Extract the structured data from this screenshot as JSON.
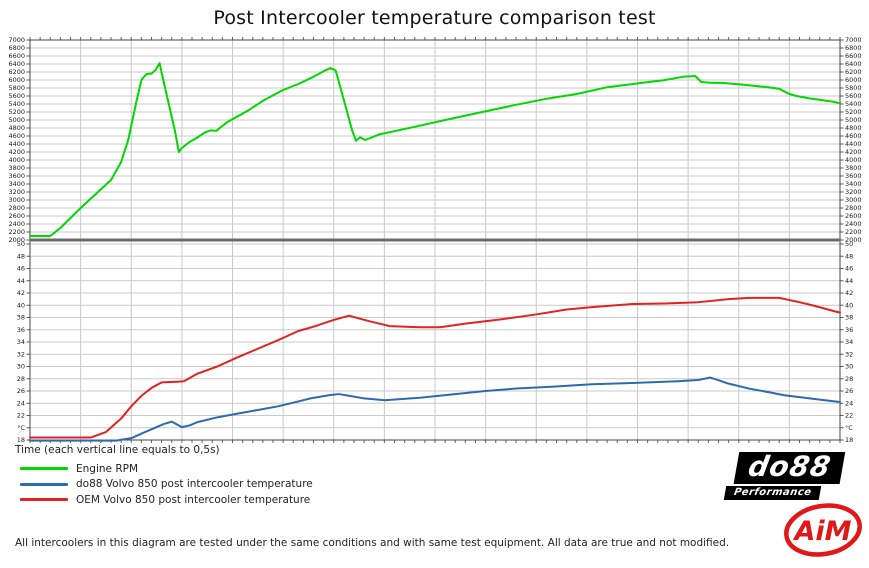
{
  "title": "Post Intercooler temperature comparison test",
  "time_axis_label": "Time (each vertical line equals to 0,5s)",
  "footer": "All intercoolers in this diagram are tested under the same conditions and with same test equipment. All data are true and not modified.",
  "legend": [
    {
      "label": "Engine RPM",
      "color": "#00d800"
    },
    {
      "label": "do88 Volvo 850 post intercooler temperature",
      "color": "#2e6ab0"
    },
    {
      "label": "OEM Volvo 850 post intercooler temperature",
      "color": "#e12323"
    }
  ],
  "logos": {
    "do88_text": "do88",
    "do88_sub": "Performance",
    "aim_text": "AiM"
  },
  "colors": {
    "grid": "#c9c9c9",
    "border": "#444444",
    "divider": "#6b6b6b",
    "axis_text": "#1a1a1a"
  },
  "chart_data": {
    "type": "line",
    "title": "Post Intercooler temperature comparison test",
    "xlabel": "Time (each vertical line equals to 0,5s)",
    "gridline_interval_seconds": 0.5,
    "x_range_seconds": [
      0,
      8
    ],
    "panels": [
      {
        "name": "rpm",
        "ylim": [
          2000,
          7000
        ],
        "tick_step": 200,
        "unit": "RPM"
      },
      {
        "name": "temperature",
        "ylim": [
          18,
          50.7
        ],
        "tick_top": 50,
        "tick_step": 2,
        "unit": "°C",
        "unit_label_replaces_tick": 20
      }
    ],
    "series": [
      {
        "name": "Engine RPM",
        "panel": "rpm",
        "color": "#00d800",
        "points": [
          [
            0,
            2100
          ],
          [
            0.2,
            2100
          ],
          [
            0.3,
            2300
          ],
          [
            0.5,
            2800
          ],
          [
            0.65,
            3150
          ],
          [
            0.8,
            3500
          ],
          [
            0.9,
            3950
          ],
          [
            0.97,
            4500
          ],
          [
            1.05,
            5450
          ],
          [
            1.1,
            6000
          ],
          [
            1.15,
            6150
          ],
          [
            1.2,
            6160
          ],
          [
            1.24,
            6250
          ],
          [
            1.28,
            6420
          ],
          [
            1.33,
            5850
          ],
          [
            1.38,
            5300
          ],
          [
            1.43,
            4750
          ],
          [
            1.47,
            4200
          ],
          [
            1.5,
            4300
          ],
          [
            1.57,
            4440
          ],
          [
            1.65,
            4560
          ],
          [
            1.73,
            4690
          ],
          [
            1.78,
            4740
          ],
          [
            1.84,
            4730
          ],
          [
            1.95,
            4950
          ],
          [
            2.15,
            5230
          ],
          [
            2.3,
            5480
          ],
          [
            2.5,
            5750
          ],
          [
            2.65,
            5900
          ],
          [
            2.8,
            6080
          ],
          [
            2.9,
            6220
          ],
          [
            2.97,
            6300
          ],
          [
            3.02,
            6230
          ],
          [
            3.1,
            5500
          ],
          [
            3.18,
            4750
          ],
          [
            3.22,
            4480
          ],
          [
            3.26,
            4570
          ],
          [
            3.31,
            4500
          ],
          [
            3.45,
            4640
          ],
          [
            3.6,
            4720
          ],
          [
            3.8,
            4830
          ],
          [
            4.1,
            5000
          ],
          [
            4.45,
            5190
          ],
          [
            4.8,
            5380
          ],
          [
            5.1,
            5530
          ],
          [
            5.4,
            5650
          ],
          [
            5.7,
            5820
          ],
          [
            6.05,
            5930
          ],
          [
            6.25,
            5990
          ],
          [
            6.45,
            6080
          ],
          [
            6.57,
            6100
          ],
          [
            6.63,
            5950
          ],
          [
            6.72,
            5930
          ],
          [
            6.85,
            5925
          ],
          [
            7.05,
            5880
          ],
          [
            7.25,
            5830
          ],
          [
            7.4,
            5780
          ],
          [
            7.5,
            5650
          ],
          [
            7.57,
            5600
          ],
          [
            7.7,
            5540
          ],
          [
            7.9,
            5470
          ],
          [
            8,
            5420
          ]
        ]
      },
      {
        "name": "do88 Volvo 850 post intercooler temperature",
        "panel": "temperature",
        "color": "#2e6ab0",
        "points": [
          [
            0,
            17.9
          ],
          [
            0.85,
            17.9
          ],
          [
            1,
            18.3
          ],
          [
            1.15,
            19.4
          ],
          [
            1.32,
            20.6
          ],
          [
            1.4,
            21
          ],
          [
            1.5,
            20.1
          ],
          [
            1.58,
            20.4
          ],
          [
            1.65,
            20.9
          ],
          [
            1.85,
            21.7
          ],
          [
            2.05,
            22.3
          ],
          [
            2.25,
            22.9
          ],
          [
            2.45,
            23.5
          ],
          [
            2.65,
            24.3
          ],
          [
            2.77,
            24.8
          ],
          [
            2.95,
            25.3
          ],
          [
            3.05,
            25.5
          ],
          [
            3.3,
            24.8
          ],
          [
            3.5,
            24.5
          ],
          [
            3.85,
            24.9
          ],
          [
            4.15,
            25.4
          ],
          [
            4.5,
            26
          ],
          [
            4.8,
            26.4
          ],
          [
            5.15,
            26.7
          ],
          [
            5.55,
            27.1
          ],
          [
            5.95,
            27.3
          ],
          [
            6.4,
            27.6
          ],
          [
            6.6,
            27.8
          ],
          [
            6.72,
            28.2
          ],
          [
            6.9,
            27.2
          ],
          [
            7.1,
            26.4
          ],
          [
            7.3,
            25.8
          ],
          [
            7.45,
            25.3
          ],
          [
            7.6,
            25
          ],
          [
            7.8,
            24.6
          ],
          [
            8,
            24.2
          ]
        ]
      },
      {
        "name": "OEM Volvo 850 post intercooler temperature",
        "panel": "temperature",
        "color": "#e12323",
        "points": [
          [
            0,
            18.4
          ],
          [
            0.6,
            18.4
          ],
          [
            0.75,
            19.3
          ],
          [
            0.9,
            21.5
          ],
          [
            1,
            23.5
          ],
          [
            1.1,
            25.2
          ],
          [
            1.2,
            26.5
          ],
          [
            1.3,
            27.4
          ],
          [
            1.45,
            27.5
          ],
          [
            1.52,
            27.6
          ],
          [
            1.65,
            28.8
          ],
          [
            1.85,
            30
          ],
          [
            2.05,
            31.5
          ],
          [
            2.25,
            32.9
          ],
          [
            2.45,
            34.3
          ],
          [
            2.65,
            35.8
          ],
          [
            2.8,
            36.5
          ],
          [
            3,
            37.6
          ],
          [
            3.15,
            38.3
          ],
          [
            3.35,
            37.4
          ],
          [
            3.55,
            36.6
          ],
          [
            3.85,
            36.4
          ],
          [
            4.05,
            36.4
          ],
          [
            4.3,
            37
          ],
          [
            4.65,
            37.7
          ],
          [
            5,
            38.5
          ],
          [
            5.3,
            39.3
          ],
          [
            5.55,
            39.7
          ],
          [
            5.95,
            40.2
          ],
          [
            6.3,
            40.3
          ],
          [
            6.6,
            40.5
          ],
          [
            6.9,
            41
          ],
          [
            7.1,
            41.2
          ],
          [
            7.4,
            41.2
          ],
          [
            7.6,
            40.5
          ],
          [
            7.75,
            39.9
          ],
          [
            7.95,
            39
          ],
          [
            8,
            38.8
          ]
        ]
      }
    ]
  }
}
